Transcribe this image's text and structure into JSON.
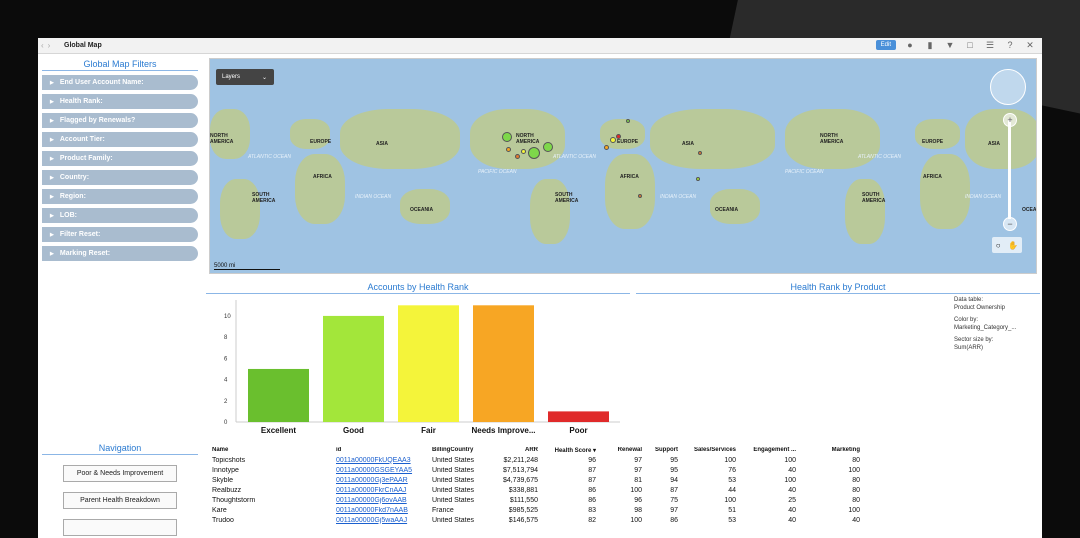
{
  "window": {
    "title": "Global Map",
    "edit_label": "Edit"
  },
  "filters": {
    "title": "Global Map Filters",
    "items": [
      {
        "label": "End User Account Name:"
      },
      {
        "label": "Health Rank:"
      },
      {
        "label": "Flagged by Renewals?"
      },
      {
        "label": "Account Tier:"
      },
      {
        "label": "Product Family:"
      },
      {
        "label": "Country:"
      },
      {
        "label": "Region:"
      },
      {
        "label": "LOB:"
      },
      {
        "label": "Filter Reset:"
      },
      {
        "label": "Marking Reset:"
      }
    ]
  },
  "map": {
    "layers_label": "Layers",
    "scale_label": "5000 mi",
    "labels": {
      "north_america_1": "NORTH\nAMERICA",
      "europe_1": "EUROPE",
      "asia_1": "ASIA",
      "africa_1": "AFRICA",
      "south_america_1": "SOUTH\nAMERICA",
      "oceania_1": "OCEANIA",
      "north_america_2": "NORTH\nAMERICA",
      "europe_2": "EUROPE",
      "asia_2": "ASIA",
      "africa_2": "AFRICA",
      "south_america_2": "SOUTH\nAMERICA",
      "oceania_2": "OCEANIA",
      "north_america_3": "NORTH\nAMERICA",
      "europe_3": "EUROPE",
      "asia_3": "ASIA",
      "africa_3": "AFRICA",
      "south_america_3": "SOUTH\nAMERICA",
      "oceania_3": "OCEA"
    },
    "oceans": {
      "atlantic_1": "ATLANTIC OCEAN",
      "indian_1": "INDIAN OCEAN",
      "pacific_1": "PACIFIC OCEAN",
      "atlantic_2": "ATLANTIC OCEAN",
      "indian_2": "INDIAN OCEAN",
      "pacific_2": "PACIFIC OCEAN",
      "atlantic_3": "ATLANTIC OCEAN",
      "indian_3": "INDIAN OCEAN"
    }
  },
  "health_panel": {
    "title": "Accounts by Health Rank"
  },
  "product_panel": {
    "title": "Health Rank by Product",
    "legend": {
      "data_table_label": "Data table:",
      "data_table_value": "Product Ownership",
      "color_by_label": "Color by:",
      "color_by_value": "Marketing_Category_...",
      "sector_label": "Sector size by:",
      "sector_value": "Sum(ARR)"
    }
  },
  "chart_data": {
    "type": "bar",
    "categories": [
      "Excellent",
      "Good",
      "Fair",
      "Needs Improve...",
      "Poor"
    ],
    "values": [
      5,
      10,
      11,
      11,
      1
    ],
    "colors": [
      "#6abf2e",
      "#a3e63a",
      "#f4f43a",
      "#f7a624",
      "#e02a2a"
    ],
    "yticks": [
      "0",
      "2",
      "4",
      "6",
      "8",
      "10"
    ],
    "ylim": [
      0,
      11.5
    ]
  },
  "navigation": {
    "title": "Navigation",
    "buttons": [
      "Poor & Needs Improvement",
      "Parent Health Breakdown"
    ]
  },
  "table": {
    "headers": [
      "Name",
      "id",
      "BillingCountry",
      "ARR",
      "Health Score ▾",
      "Renewal",
      "Support",
      "Sales/Services",
      "Engagement ...",
      "Marketing"
    ],
    "rows": [
      [
        "Topicshots",
        "0011a00000FkUQEAA3",
        "United States",
        "$2,211,248",
        "96",
        "97",
        "95",
        "100",
        "100",
        "80"
      ],
      [
        "Innotype",
        "0011a00000GSGEYAA5",
        "United States",
        "$7,513,794",
        "87",
        "97",
        "95",
        "76",
        "40",
        "100"
      ],
      [
        "Skyble",
        "0011a00000Gj3ePAAR",
        "United States",
        "$4,739,675",
        "87",
        "81",
        "94",
        "53",
        "100",
        "80"
      ],
      [
        "Realbuzz",
        "0011a00000FkrCnAAJ",
        "United States",
        "$338,881",
        "86",
        "100",
        "87",
        "44",
        "40",
        "80"
      ],
      [
        "Thoughtstorm",
        "0011a00000Gj6ovAAB",
        "United States",
        "$111,550",
        "86",
        "96",
        "75",
        "100",
        "25",
        "80"
      ],
      [
        "Kare",
        "0011a00000Fkd7nAAB",
        "France",
        "$985,525",
        "83",
        "98",
        "97",
        "51",
        "40",
        "100"
      ],
      [
        "Trudoo",
        "0011a00000Gj5waAAJ",
        "United States",
        "$146,575",
        "82",
        "100",
        "86",
        "53",
        "40",
        "40"
      ]
    ]
  }
}
